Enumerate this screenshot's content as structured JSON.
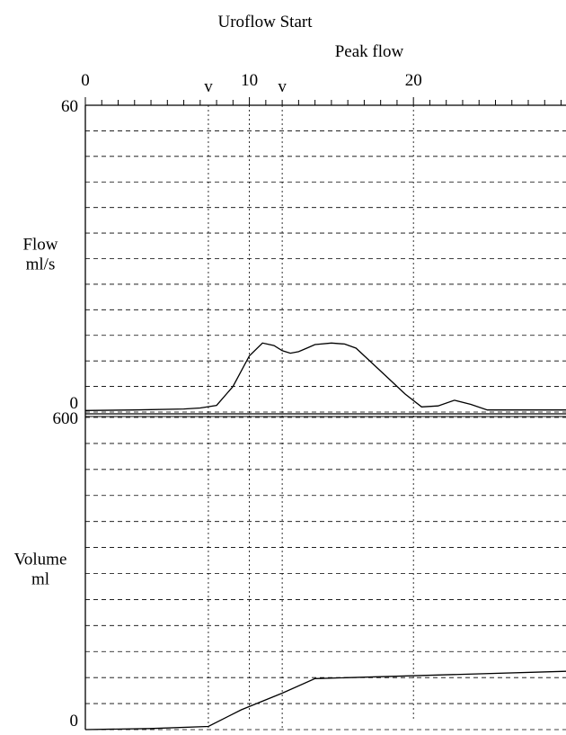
{
  "chart_data": {
    "type": "line",
    "annotations": {
      "uroflow_start": {
        "label": "Uroflow Start",
        "marker": "v",
        "x": 7.5
      },
      "peak_flow": {
        "label": "Peak flow",
        "marker": "v",
        "x": 12
      }
    },
    "x_axis": {
      "range": [
        0,
        29.3
      ],
      "tick_labels": [
        "0",
        "10",
        "20"
      ],
      "tick_values": [
        0,
        10,
        20
      ],
      "minor_tick_step": 1
    },
    "panels": [
      {
        "id": "flow",
        "ylabel": "Flow",
        "yunit": "ml/s",
        "ylim": [
          0,
          60
        ],
        "y_tick_labels": [
          "60",
          "0"
        ],
        "grid_step": 5,
        "series": [
          {
            "points": [
              [
                0,
                0.3
              ],
              [
                3,
                0.4
              ],
              [
                6,
                0.6
              ],
              [
                7,
                0.8
              ],
              [
                8,
                1.3
              ],
              [
                9,
                5
              ],
              [
                10,
                11
              ],
              [
                10.8,
                13.5
              ],
              [
                11.5,
                13
              ],
              [
                12,
                12
              ],
              [
                12.5,
                11.5
              ],
              [
                13,
                11.8
              ],
              [
                13.5,
                12.5
              ],
              [
                14,
                13.2
              ],
              [
                15,
                13.5
              ],
              [
                15.8,
                13.3
              ],
              [
                16.5,
                12.5
              ],
              [
                18,
                8
              ],
              [
                19.5,
                3.5
              ],
              [
                20.5,
                1
              ],
              [
                21.5,
                1.2
              ],
              [
                22.5,
                2.3
              ],
              [
                23.5,
                1.5
              ],
              [
                24.5,
                0.4
              ],
              [
                29.3,
                0.4
              ]
            ]
          }
        ]
      },
      {
        "id": "volume",
        "ylabel": "Volume",
        "yunit": "ml",
        "ylim": [
          0,
          600
        ],
        "y_tick_labels": [
          "600",
          "0"
        ],
        "grid_step": 50,
        "series": [
          {
            "points": [
              [
                0,
                0
              ],
              [
                4,
                2
              ],
              [
                7.5,
                6
              ],
              [
                9.5,
                38
              ],
              [
                12,
                70
              ],
              [
                14,
                98
              ],
              [
                29.3,
                112
              ]
            ]
          }
        ]
      }
    ],
    "grid": "dashed horizontal"
  }
}
